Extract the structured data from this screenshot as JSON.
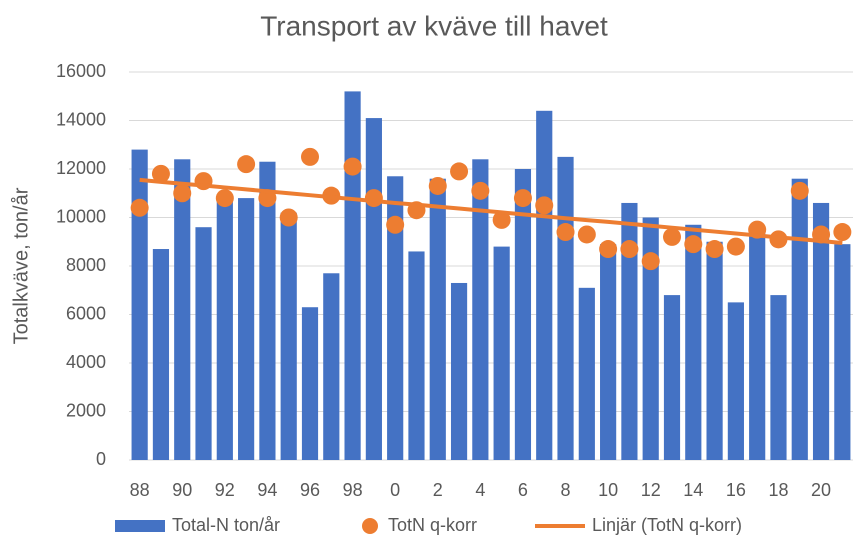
{
  "chart_data": {
    "type": "bar",
    "title": "Transport av kväve till havet",
    "y_label": "Totalkväve, ton/år",
    "categories": [
      "88",
      null,
      "90",
      null,
      "92",
      null,
      "94",
      null,
      "96",
      null,
      "98",
      null,
      "0",
      null,
      "2",
      null,
      "4",
      null,
      "6",
      null,
      "8",
      null,
      "10",
      null,
      "12",
      null,
      "14",
      null,
      "16",
      null,
      "18",
      null,
      "20",
      null
    ],
    "series": [
      {
        "name": "Total-N ton/år",
        "type": "bar",
        "color": "#4472c4",
        "values": [
          12800,
          8700,
          12400,
          9600,
          10700,
          10800,
          12300,
          10200,
          6300,
          7700,
          15200,
          14100,
          11700,
          8600,
          11600,
          7300,
          12400,
          8800,
          12000,
          14400,
          12500,
          7100,
          8900,
          10600,
          10000,
          6800,
          9700,
          9000,
          6500,
          9400,
          6800,
          11600,
          10600,
          8900
        ]
      },
      {
        "name": "TotN q-korr",
        "type": "scatter",
        "color": "#ed7d31",
        "values": [
          10400,
          11800,
          11000,
          11500,
          10800,
          12200,
          10800,
          10000,
          12500,
          10900,
          12100,
          10800,
          9700,
          10300,
          11300,
          11900,
          11100,
          9900,
          10800,
          10500,
          9400,
          9300,
          8700,
          8700,
          8200,
          9200,
          8900,
          8700,
          8800,
          9500,
          9100,
          11100,
          9300,
          9400
        ]
      },
      {
        "name": "Linjär (TotN q-korr)",
        "type": "line",
        "color": "#ed7d31",
        "values": [
          11550,
          11470,
          11390,
          11320,
          11240,
          11160,
          11080,
          11000,
          10920,
          10840,
          10760,
          10680,
          10600,
          10530,
          10450,
          10370,
          10290,
          10210,
          10130,
          10050,
          9970,
          9890,
          9820,
          9740,
          9660,
          9580,
          9500,
          9420,
          9340,
          9260,
          9180,
          9110,
          9030,
          8950
        ]
      }
    ],
    "ylim": [
      0,
      16000
    ],
    "yticks": [
      0,
      2000,
      4000,
      6000,
      8000,
      10000,
      12000,
      14000,
      16000
    ],
    "grid": true,
    "legend": "bottom"
  }
}
